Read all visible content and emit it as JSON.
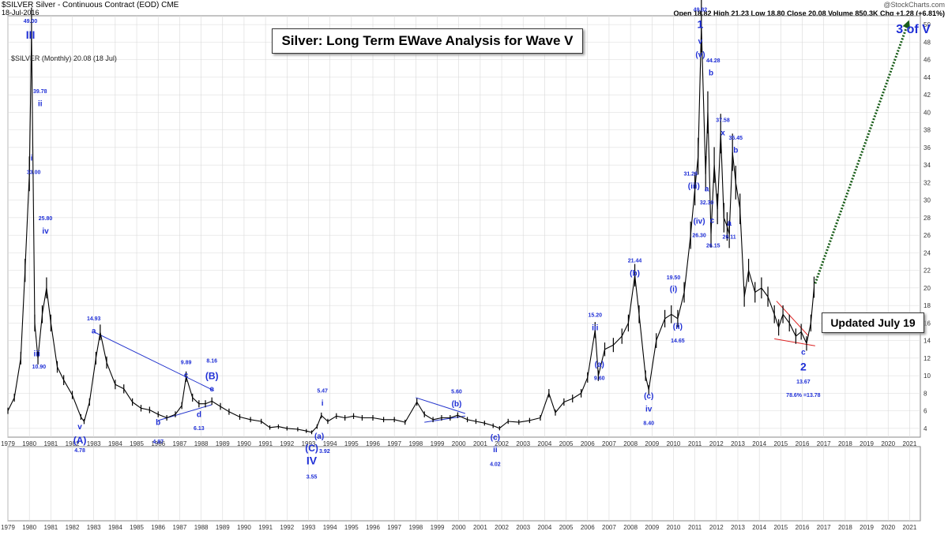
{
  "header": {
    "symbol_line": "$SILVER Silver - Continuous Contract (EOD) CME",
    "date": "18-Jul-2016",
    "watermark": "@StockCharts.com",
    "ohlc": "Open 18.82  High 21.23  Low 18.80  Close 20.08  Volume 850.3K  Chg +1.28 (+6.81%)",
    "legend": "$SILVER (Monthly) 20.08 (18 Jul)"
  },
  "title_box": "Silver: Long Term EWave Analysis for Wave V",
  "updated_box": "Updated July 19",
  "target_label": "3 of V",
  "colors": {
    "annotation": "#1f2fd6",
    "price": "#000000",
    "grid": "#d9d9d9",
    "trend": "#2233cc",
    "triangle": "#dd2222",
    "forecast": "#1a5e1a"
  },
  "chart_data": {
    "type": "line",
    "title": "Silver: Long Term EWave Analysis for Wave V",
    "xlabel": "",
    "ylabel": "",
    "xlim": [
      1979.0,
      2021.5
    ],
    "ylim": [
      3,
      51
    ],
    "y_ticks": [
      4,
      6,
      8,
      10,
      12,
      14,
      16,
      18,
      20,
      22,
      24,
      26,
      28,
      30,
      32,
      34,
      36,
      38,
      40,
      42,
      44,
      46,
      48,
      50
    ],
    "x_ticks": [
      "1979",
      "1980",
      "1981",
      "1982",
      "1983",
      "1984",
      "1985",
      "1986",
      "1987",
      "1988",
      "1989",
      "1990",
      "1991",
      "1992",
      "1993",
      "1994",
      "1995",
      "1996",
      "1997",
      "1998",
      "1999",
      "2000",
      "2001",
      "2002",
      "2003",
      "2004",
      "2005",
      "2006",
      "2007",
      "2008",
      "2009",
      "2010",
      "2011",
      "2012",
      "2013",
      "2014",
      "2015",
      "2016",
      "2017",
      "2018",
      "2019",
      "2020",
      "2021"
    ],
    "grid": true,
    "series": [
      {
        "name": "$SILVER (Monthly)",
        "x": [
          1979.0,
          1979.3,
          1979.6,
          1979.8,
          1980.0,
          1980.1,
          1980.25,
          1980.4,
          1980.6,
          1980.8,
          1981.0,
          1981.3,
          1981.6,
          1982.0,
          1982.4,
          1982.55,
          1982.8,
          1983.1,
          1983.3,
          1983.6,
          1984.0,
          1984.4,
          1984.8,
          1985.2,
          1985.6,
          1986.0,
          1986.4,
          1986.8,
          1987.1,
          1987.3,
          1987.6,
          1987.9,
          1988.2,
          1988.5,
          1988.9,
          1989.3,
          1989.8,
          1990.3,
          1990.8,
          1991.2,
          1991.6,
          1992.0,
          1992.5,
          1992.9,
          1993.15,
          1993.4,
          1993.6,
          1993.9,
          1994.3,
          1994.7,
          1995.1,
          1995.5,
          1996.0,
          1996.5,
          1997.0,
          1997.5,
          1998.05,
          1998.4,
          1998.8,
          1999.2,
          1999.6,
          1999.95,
          2000.4,
          2000.8,
          2001.2,
          2001.6,
          2001.9,
          2002.3,
          2002.8,
          2003.3,
          2003.8,
          2004.2,
          2004.5,
          2004.9,
          2005.3,
          2005.7,
          2006.0,
          2006.35,
          2006.5,
          2006.8,
          2007.2,
          2007.6,
          2007.9,
          2008.2,
          2008.4,
          2008.7,
          2008.85,
          2009.2,
          2009.6,
          2009.9,
          2010.2,
          2010.5,
          2010.8,
          2011.0,
          2011.15,
          2011.3,
          2011.5,
          2011.6,
          2011.75,
          2011.9,
          2012.05,
          2012.2,
          2012.35,
          2012.5,
          2012.6,
          2012.75,
          2012.9,
          2013.1,
          2013.3,
          2013.5,
          2013.8,
          2014.1,
          2014.4,
          2014.7,
          2014.9,
          2015.1,
          2015.4,
          2015.7,
          2015.95,
          2016.2,
          2016.4,
          2016.55
        ],
        "values": [
          6.0,
          7.5,
          12.0,
          22.0,
          33.0,
          49.0,
          16.0,
          12.0,
          17.0,
          20.0,
          16.0,
          11.0,
          9.5,
          7.8,
          5.3,
          4.78,
          7.0,
          12.0,
          14.93,
          11.5,
          9.0,
          8.5,
          7.0,
          6.3,
          6.1,
          5.6,
          5.2,
          5.6,
          6.6,
          9.89,
          7.5,
          6.8,
          6.8,
          7.1,
          6.5,
          5.9,
          5.3,
          5.0,
          4.8,
          4.1,
          4.2,
          4.0,
          3.9,
          3.7,
          3.55,
          4.2,
          5.47,
          4.8,
          5.4,
          5.2,
          5.4,
          5.2,
          5.2,
          5.0,
          5.0,
          4.7,
          7.0,
          5.6,
          5.0,
          5.2,
          5.2,
          5.5,
          5.0,
          4.8,
          4.6,
          4.3,
          4.02,
          4.8,
          4.7,
          4.9,
          5.2,
          8.0,
          5.8,
          7.0,
          7.4,
          8.0,
          9.8,
          15.2,
          10.0,
          13.0,
          13.5,
          14.5,
          16.0,
          21.44,
          17.0,
          10.0,
          8.4,
          14.0,
          16.5,
          17.0,
          16.5,
          19.5,
          26.0,
          31.28,
          35.0,
          49.82,
          33.0,
          40.0,
          26.15,
          34.0,
          29.0,
          37.58,
          28.0,
          27.0,
          26.11,
          35.45,
          32.0,
          29.0,
          19.0,
          22.0,
          19.5,
          20.0,
          19.0,
          17.0,
          15.5,
          17.0,
          16.0,
          14.5,
          15.0,
          13.67,
          16.0,
          20.08
        ]
      }
    ],
    "forecast": {
      "x": [
        2016.6,
        2020.9
      ],
      "y": [
        20.5,
        50
      ]
    },
    "trendlines": [
      {
        "x": [
          1983.0,
          1988.6
        ],
        "y": [
          15.0,
          8.3
        ]
      },
      {
        "x": [
          1986.0,
          1988.5
        ],
        "y": [
          4.9,
          6.7
        ]
      },
      {
        "x": [
          1998.0,
          2000.3
        ],
        "y": [
          7.5,
          5.7
        ]
      },
      {
        "x": [
          1998.4,
          2000.3
        ],
        "y": [
          4.7,
          5.4
        ]
      }
    ],
    "triangle": [
      {
        "x": [
          2014.8,
          2016.3
        ],
        "y": [
          18.5,
          14.5
        ]
      },
      {
        "x": [
          2014.7,
          2016.6
        ],
        "y": [
          14.2,
          13.4
        ]
      }
    ],
    "annotations": [
      {
        "text": "49.00",
        "x": 1980.05,
        "y": 50.2,
        "size": 7
      },
      {
        "text": "III",
        "x": 1980.05,
        "y": 48.4,
        "size": 14
      },
      {
        "text": "39.78",
        "x": 1980.5,
        "y": 42.2,
        "size": 7
      },
      {
        "text": "ii",
        "x": 1980.5,
        "y": 40.7,
        "size": 10
      },
      {
        "text": "i",
        "x": 1980.1,
        "y": 34.5,
        "size": 10
      },
      {
        "text": "33.00",
        "x": 1980.2,
        "y": 33.0,
        "size": 7
      },
      {
        "text": "25.80",
        "x": 1980.75,
        "y": 27.7,
        "size": 7
      },
      {
        "text": "iv",
        "x": 1980.75,
        "y": 26.2,
        "size": 10
      },
      {
        "text": "iii",
        "x": 1980.35,
        "y": 12.2,
        "size": 10
      },
      {
        "text": "10.90",
        "x": 1980.45,
        "y": 10.8,
        "size": 7
      },
      {
        "text": "v",
        "x": 1982.35,
        "y": 3.9,
        "size": 10
      },
      {
        "text": "(A)",
        "x": 1982.35,
        "y": 2.3,
        "size": 12
      },
      {
        "text": "4.78",
        "x": 1982.35,
        "y": 1.3,
        "size": 7
      },
      {
        "text": "14.93",
        "x": 1983.0,
        "y": 16.3,
        "size": 7
      },
      {
        "text": "a",
        "x": 1983.0,
        "y": 14.8,
        "size": 10
      },
      {
        "text": "b",
        "x": 1986.0,
        "y": 4.4,
        "size": 10
      },
      {
        "text": "4.87",
        "x": 1986.0,
        "y": 2.3,
        "size": 7
      },
      {
        "text": "9.89",
        "x": 1987.3,
        "y": 11.3,
        "size": 7
      },
      {
        "text": "c",
        "x": 1987.3,
        "y": 9.8,
        "size": 10
      },
      {
        "text": "8.16",
        "x": 1988.5,
        "y": 11.5,
        "size": 7
      },
      {
        "text": "(B)",
        "x": 1988.5,
        "y": 9.6,
        "size": 12
      },
      {
        "text": "e",
        "x": 1988.5,
        "y": 8.2,
        "size": 10
      },
      {
        "text": "d",
        "x": 1987.9,
        "y": 5.3,
        "size": 10
      },
      {
        "text": "6.13",
        "x": 1987.9,
        "y": 3.8,
        "size": 7
      },
      {
        "text": "5.47",
        "x": 1993.65,
        "y": 8.1,
        "size": 7
      },
      {
        "text": "i",
        "x": 1993.65,
        "y": 6.6,
        "size": 10
      },
      {
        "text": "(a)",
        "x": 1993.5,
        "y": 2.8,
        "size": 10
      },
      {
        "text": "(C)",
        "x": 1993.15,
        "y": 1.4,
        "size": 12
      },
      {
        "text": "IV",
        "x": 1993.15,
        "y": -0.1,
        "size": 14
      },
      {
        "text": "3.92",
        "x": 1993.75,
        "y": 1.2,
        "size": 7
      },
      {
        "text": "3.55",
        "x": 1993.15,
        "y": -1.7,
        "size": 7
      },
      {
        "text": "5.60",
        "x": 1999.9,
        "y": 8.0,
        "size": 7
      },
      {
        "text": "(b)",
        "x": 1999.9,
        "y": 6.5,
        "size": 10
      },
      {
        "text": "(c)",
        "x": 2001.7,
        "y": 2.7,
        "size": 10
      },
      {
        "text": "ii",
        "x": 2001.7,
        "y": 1.3,
        "size": 10
      },
      {
        "text": "4.02",
        "x": 2001.7,
        "y": -0.3,
        "size": 7
      },
      {
        "text": "15.20",
        "x": 2006.35,
        "y": 16.7,
        "size": 7
      },
      {
        "text": "iii",
        "x": 2006.35,
        "y": 15.2,
        "size": 10
      },
      {
        "text": "(a)",
        "x": 2006.55,
        "y": 11.0,
        "size": 10
      },
      {
        "text": "9.60",
        "x": 2006.55,
        "y": 9.5,
        "size": 7
      },
      {
        "text": "21.44",
        "x": 2008.2,
        "y": 22.9,
        "size": 7
      },
      {
        "text": "(b)",
        "x": 2008.2,
        "y": 21.4,
        "size": 10
      },
      {
        "text": "(c)",
        "x": 2008.85,
        "y": 7.4,
        "size": 10
      },
      {
        "text": "iv",
        "x": 2008.85,
        "y": 5.9,
        "size": 10
      },
      {
        "text": "8.40",
        "x": 2008.85,
        "y": 4.4,
        "size": 7
      },
      {
        "text": "19.50",
        "x": 2010.0,
        "y": 21.0,
        "size": 7
      },
      {
        "text": "(i)",
        "x": 2010.0,
        "y": 19.6,
        "size": 10
      },
      {
        "text": "(ii)",
        "x": 2010.2,
        "y": 15.3,
        "size": 10
      },
      {
        "text": "14.65",
        "x": 2010.2,
        "y": 13.8,
        "size": 7
      },
      {
        "text": "31.28",
        "x": 2010.8,
        "y": 32.8,
        "size": 7
      },
      {
        "text": "(iii)",
        "x": 2010.95,
        "y": 31.3,
        "size": 10
      },
      {
        "text": "(iv)",
        "x": 2011.2,
        "y": 27.3,
        "size": 10
      },
      {
        "text": "26.30",
        "x": 2011.2,
        "y": 25.8,
        "size": 7
      },
      {
        "text": "49.82",
        "x": 2011.25,
        "y": 51.5,
        "size": 7
      },
      {
        "text": "1",
        "x": 2011.25,
        "y": 49.6,
        "size": 14
      },
      {
        "text": "v",
        "x": 2011.25,
        "y": 47.8,
        "size": 10
      },
      {
        "text": "(v)",
        "x": 2011.25,
        "y": 46.3,
        "size": 10
      },
      {
        "text": "a",
        "x": 2011.55,
        "y": 31.0,
        "size": 10
      },
      {
        "text": "32.30",
        "x": 2011.55,
        "y": 29.5,
        "size": 7
      },
      {
        "text": "44.28",
        "x": 2011.85,
        "y": 45.7,
        "size": 7
      },
      {
        "text": "b",
        "x": 2011.75,
        "y": 44.2,
        "size": 10
      },
      {
        "text": "c",
        "x": 2011.8,
        "y": 27.4,
        "size": 10
      },
      {
        "text": "26.15",
        "x": 2011.85,
        "y": 24.6,
        "size": 7
      },
      {
        "text": "37.58",
        "x": 2012.3,
        "y": 38.9,
        "size": 7
      },
      {
        "text": "x",
        "x": 2012.3,
        "y": 37.4,
        "size": 10
      },
      {
        "text": "a",
        "x": 2012.6,
        "y": 27.1,
        "size": 10
      },
      {
        "text": "26.11",
        "x": 2012.6,
        "y": 25.6,
        "size": 7
      },
      {
        "text": "35.45",
        "x": 2012.9,
        "y": 36.9,
        "size": 7
      },
      {
        "text": "b",
        "x": 2012.9,
        "y": 35.4,
        "size": 10
      },
      {
        "text": "c",
        "x": 2016.05,
        "y": 12.4,
        "size": 10
      },
      {
        "text": "2",
        "x": 2016.05,
        "y": 10.6,
        "size": 14
      },
      {
        "text": "13.67",
        "x": 2016.05,
        "y": 9.1,
        "size": 7
      },
      {
        "text": "78.6% =13.78",
        "x": 2016.05,
        "y": 7.6,
        "size": 7
      }
    ]
  }
}
